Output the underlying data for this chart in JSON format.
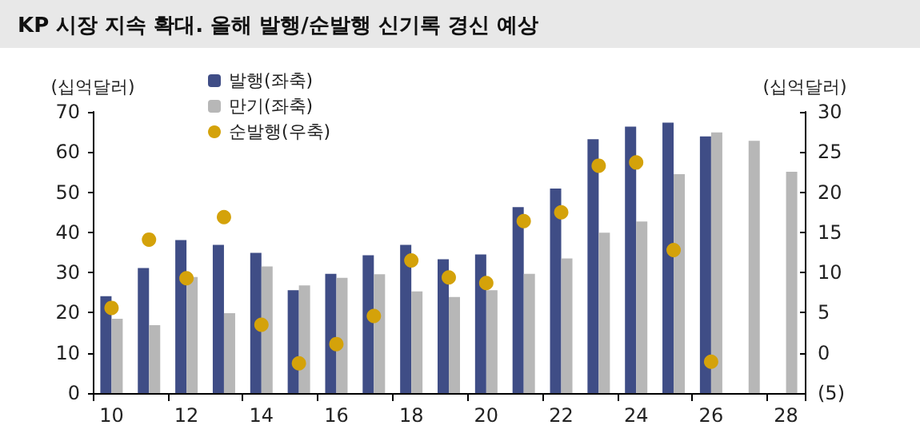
{
  "chart_data": {
    "type": "bar",
    "title": "KP 시장 지속 확대. 올해 발행/순발행 신기록 경신 예상",
    "ylabel": "(십억달러)",
    "y2label": "(십억달러)",
    "categories": [
      "10",
      null,
      "12",
      null,
      "14",
      null,
      "16",
      null,
      "18",
      null,
      "20",
      null,
      "22",
      null,
      "24",
      null,
      "26",
      null,
      "28"
    ],
    "series": [
      {
        "name": "발행(좌축)",
        "color": "#3f4d86",
        "values": [
          24.1,
          31.1,
          38.1,
          36.9,
          34.9,
          25.6,
          29.7,
          34.3,
          36.9,
          33.3,
          34.5,
          46.3,
          50.9,
          63.2,
          66.3,
          67.3,
          63.9,
          null,
          null
        ]
      },
      {
        "name": "만기(좌축)",
        "color": "#b7b7b7",
        "values": [
          18.5,
          16.9,
          28.9,
          19.9,
          31.5,
          26.8,
          28.7,
          29.6,
          25.3,
          23.9,
          25.6,
          29.7,
          33.5,
          39.9,
          42.7,
          54.5,
          64.9,
          62.8,
          55.1
        ]
      },
      {
        "name": "순발행(우축)",
        "type": "scatter",
        "axis": "y2",
        "color": "#d4a20a",
        "values": [
          5.6,
          14.1,
          9.3,
          16.9,
          3.5,
          -1.3,
          1.1,
          4.6,
          11.5,
          9.4,
          8.7,
          16.4,
          17.5,
          23.3,
          23.7,
          12.8,
          -1.1,
          null,
          null
        ]
      }
    ],
    "ylim": [
      0,
      70
    ],
    "yticks": [
      0,
      10,
      20,
      30,
      40,
      50,
      60,
      70
    ],
    "y2lim": [
      -5,
      30
    ],
    "y2ticks": [
      {
        "value": -5,
        "label": "(5)"
      },
      0,
      5,
      10,
      15,
      20,
      25,
      30
    ],
    "grid": false,
    "legend": "top left",
    "marker": "circle"
  }
}
